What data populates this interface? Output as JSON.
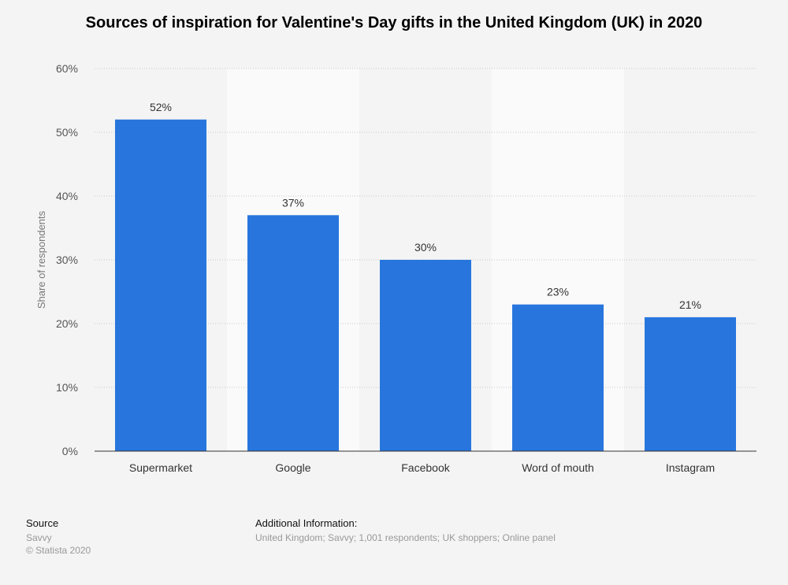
{
  "chart_data": {
    "type": "bar",
    "title": "Sources of inspiration for Valentine's Day gifts in the United Kingdom (UK) in 2020",
    "ylabel": "Share of respondents",
    "xlabel": "",
    "categories": [
      "Supermarket",
      "Google",
      "Facebook",
      "Word of mouth",
      "Instagram"
    ],
    "values": [
      52,
      37,
      30,
      23,
      21
    ],
    "value_labels": [
      "52%",
      "37%",
      "30%",
      "23%",
      "21%"
    ],
    "ylim": [
      0,
      60
    ],
    "yticks": [
      0,
      10,
      20,
      30,
      40,
      50,
      60
    ],
    "ytick_labels": [
      "0%",
      "10%",
      "20%",
      "30%",
      "40%",
      "50%",
      "60%"
    ],
    "grid": true,
    "bar_color": "#2876dd"
  },
  "footer": {
    "source_heading": "Source",
    "source_name": "Savvy",
    "copyright": "© Statista 2020",
    "additional_heading": "Additional Information:",
    "additional_text": "United Kingdom; Savvy; 1,001 respondents; UK shoppers; Online panel"
  }
}
